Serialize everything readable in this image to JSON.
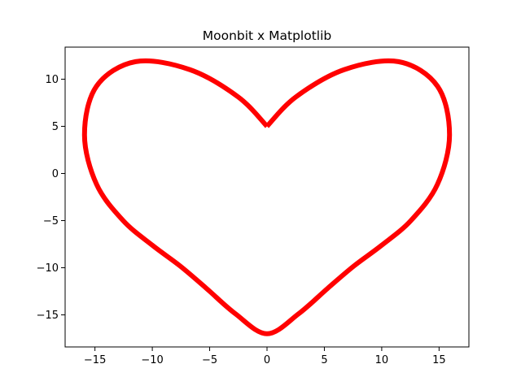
{
  "chart_data": {
    "type": "line",
    "title": "Moonbit x Matplotlib",
    "xlabel": "",
    "ylabel": "",
    "xlim": [
      -17.6,
      17.6
    ],
    "ylim": [
      -18.4,
      13.4
    ],
    "xticks": [
      -15,
      -10,
      -5,
      0,
      5,
      10,
      15
    ],
    "xtick_labels": [
      "−15",
      "−10",
      "−5",
      "0",
      "5",
      "10",
      "15"
    ],
    "yticks": [
      -15,
      -10,
      -5,
      0,
      5,
      10
    ],
    "ytick_labels": [
      "−15",
      "−10",
      "−5",
      "0",
      "5",
      "10"
    ],
    "grid": false,
    "legend": "none",
    "series": [
      {
        "color": "#ff0000",
        "x": [
          0,
          2.51,
          6.72,
          11.46,
          14.87,
          15.91,
          14.86,
          12.55,
          9.98,
          7.58,
          5.3,
          2.76,
          0,
          -2.76,
          -5.3,
          -7.58,
          -9.98,
          -12.55,
          -14.86,
          -15.91,
          -14.87,
          -11.46,
          -6.72,
          -2.51,
          0
        ],
        "y": [
          5,
          8.11,
          11.01,
          11.86,
          9.24,
          4.08,
          -1.15,
          -4.99,
          -7.63,
          -9.81,
          -12.17,
          -14.88,
          -17,
          -14.88,
          -12.17,
          -9.81,
          -7.63,
          -4.99,
          -1.15,
          4.08,
          9.24,
          11.86,
          11.01,
          8.11,
          5
        ]
      }
    ]
  }
}
